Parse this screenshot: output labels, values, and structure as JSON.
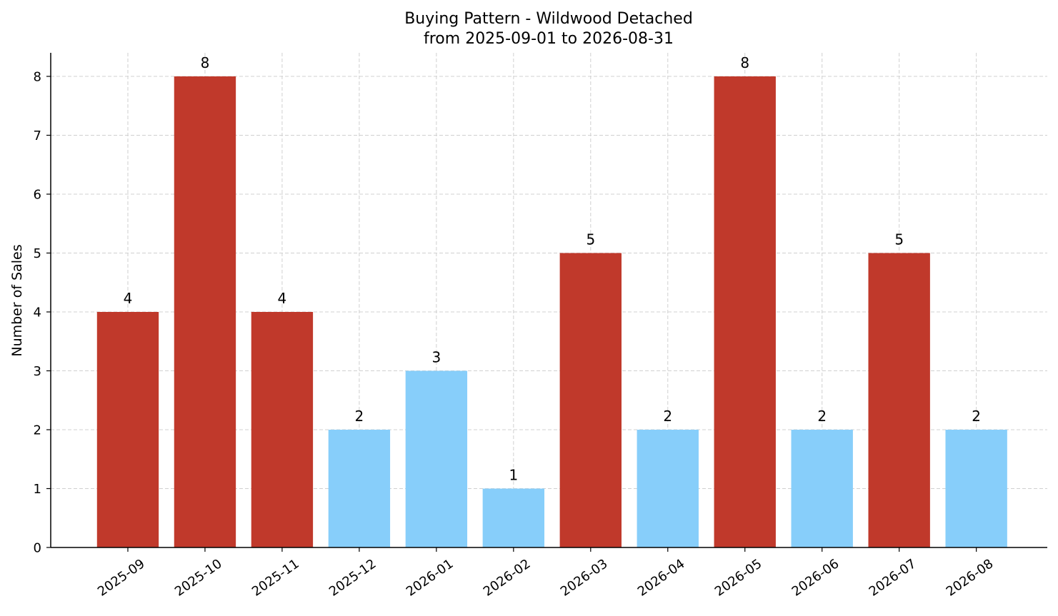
{
  "chart_data": {
    "type": "bar",
    "title": "Buying Pattern - Wildwood Detached",
    "subtitle": "from 2025-09-01 to 2026-08-31",
    "xlabel": "",
    "ylabel": "Number of Sales",
    "ylim": [
      0,
      8.4
    ],
    "yticks": [
      "0",
      "1",
      "2",
      "3",
      "4",
      "5",
      "6",
      "7",
      "8"
    ],
    "grid": true,
    "categories": [
      "2025-09",
      "2025-10",
      "2025-11",
      "2025-12",
      "2026-01",
      "2026-02",
      "2026-03",
      "2026-04",
      "2026-05",
      "2026-06",
      "2026-07",
      "2026-08"
    ],
    "values": [
      4,
      8,
      4,
      2,
      3,
      1,
      5,
      2,
      8,
      2,
      5,
      2
    ],
    "bar_colors": [
      "#c0392b",
      "#c0392b",
      "#c0392b",
      "#87cefa",
      "#87cefa",
      "#87cefa",
      "#c0392b",
      "#87cefa",
      "#c0392b",
      "#87cefa",
      "#c0392b",
      "#87cefa"
    ]
  }
}
